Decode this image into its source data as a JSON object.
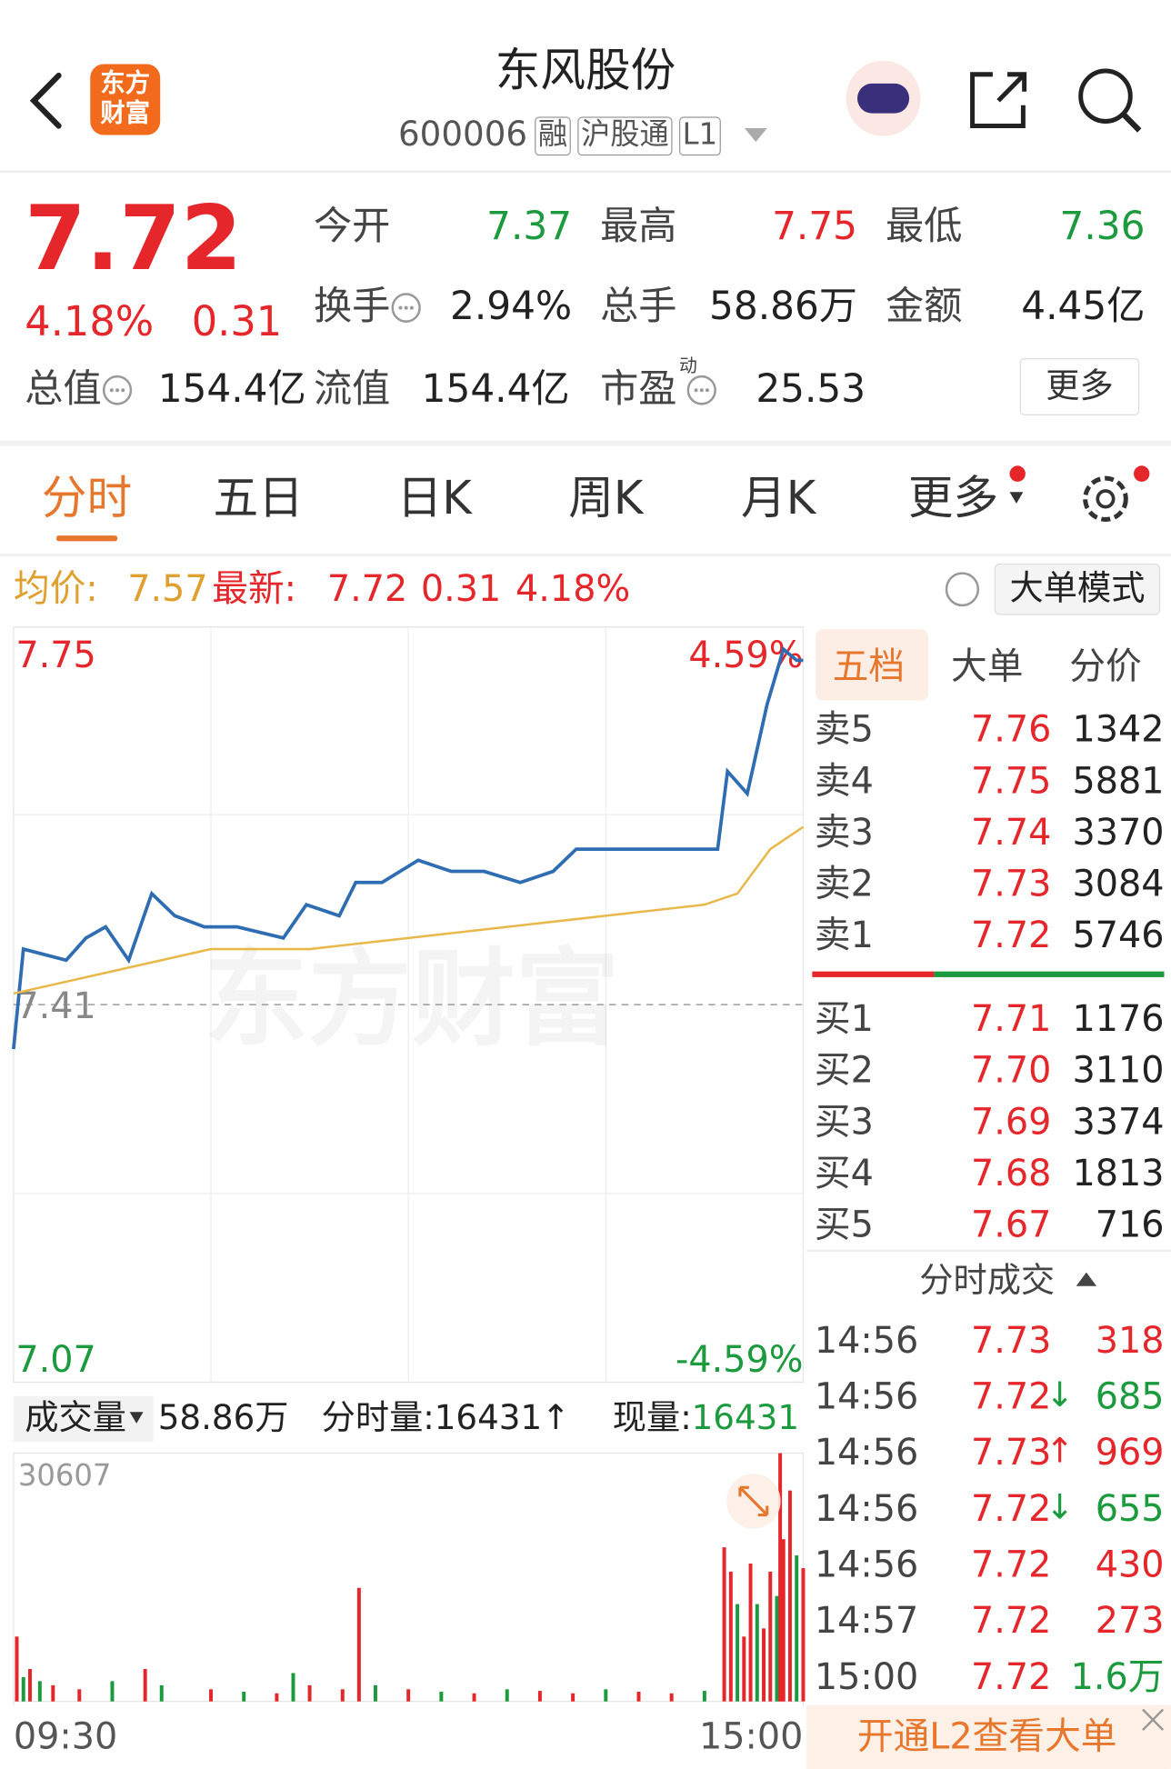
{
  "header": {
    "logo": "东方财富",
    "title": "东风股份",
    "code": "600006",
    "tags": [
      "融",
      "沪股通",
      "L1"
    ]
  },
  "quote": {
    "price": "7.72",
    "change_pct": "4.18%",
    "change": "0.31",
    "stats": [
      {
        "label": "今开",
        "value": "7.37",
        "color": "#1c9a3e"
      },
      {
        "label": "最高",
        "value": "7.75",
        "color": "#e5262b"
      },
      {
        "label": "最低",
        "value": "7.36",
        "color": "#1c9a3e"
      },
      {
        "label": "换手",
        "value": "2.94%",
        "color": "#222222"
      },
      {
        "label": "总手",
        "value": "58.86万",
        "color": "#222222"
      },
      {
        "label": "金额",
        "value": "4.45亿",
        "color": "#222222"
      },
      {
        "label": "总值",
        "value": "154.4亿",
        "color": "#222222"
      },
      {
        "label": "流值",
        "value": "154.4亿",
        "color": "#222222"
      },
      {
        "label": "市盈",
        "label_sup": "动",
        "value": "25.53",
        "color": "#222222"
      }
    ],
    "more": "更多"
  },
  "tabs": [
    "分时",
    "五日",
    "日K",
    "周K",
    "月K",
    "更多"
  ],
  "info_bar": {
    "avg_label": "均价:",
    "avg": "7.57",
    "latest_label": "最新:",
    "latest": "7.72",
    "change": "0.31",
    "change_pct": "4.18%",
    "mode_button": "大单模式"
  },
  "chart_data": [
    {
      "type": "line",
      "watermark": "东方财富",
      "xlim": [
        0,
        240
      ],
      "xticks": [
        {
          "value": 0,
          "label": "09:30"
        },
        {
          "value": 240,
          "label": "15:00"
        }
      ],
      "ylim": [
        7.07,
        7.75
      ],
      "yticks": [
        7.07,
        7.41,
        7.75
      ],
      "y2lim": [
        -4.59,
        4.59
      ],
      "y2ticks": [
        {
          "value": -4.59,
          "label": "-4.59%"
        },
        {
          "value": 4.59,
          "label": "4.59%"
        }
      ],
      "series": [
        {
          "name": "最新",
          "color": "#2f6db3",
          "x": [
            0,
            3,
            16,
            22,
            28,
            35,
            42,
            49,
            58,
            68,
            82,
            89,
            99,
            104,
            112,
            123,
            133,
            143,
            154,
            164,
            171,
            185,
            202,
            214,
            217,
            223,
            229,
            234,
            238,
            240
          ],
          "values": [
            7.37,
            7.46,
            7.45,
            7.47,
            7.48,
            7.45,
            7.51,
            7.49,
            7.48,
            7.48,
            7.47,
            7.5,
            7.49,
            7.52,
            7.52,
            7.54,
            7.53,
            7.53,
            7.52,
            7.53,
            7.55,
            7.55,
            7.55,
            7.55,
            7.62,
            7.6,
            7.68,
            7.73,
            7.72,
            7.72
          ]
        },
        {
          "name": "均价",
          "color": "#e8b84a",
          "x": [
            0,
            30,
            60,
            90,
            120,
            150,
            180,
            210,
            220,
            230,
            240
          ],
          "values": [
            7.42,
            7.44,
            7.46,
            7.46,
            7.47,
            7.48,
            7.49,
            7.5,
            7.51,
            7.55,
            7.57
          ]
        }
      ]
    },
    {
      "type": "bar",
      "title": "成交量",
      "total": "58.86万",
      "period_label": "分时量:",
      "period_value": "16431",
      "period_arrow": "↑",
      "now_label": "现量:",
      "now_value": "16431",
      "xlim": [
        0,
        240
      ],
      "ylim": [
        0,
        30607
      ],
      "yticks": [
        30607
      ],
      "x": [
        1,
        3,
        5,
        8,
        12,
        20,
        30,
        40,
        45,
        60,
        70,
        80,
        85,
        90,
        100,
        105,
        110,
        120,
        130,
        140,
        150,
        160,
        170,
        180,
        190,
        200,
        210,
        216,
        218,
        220,
        222,
        224,
        226,
        228,
        230,
        232,
        233,
        234,
        236,
        238,
        240
      ],
      "values": [
        8000,
        3000,
        4000,
        2500,
        2000,
        1500,
        2500,
        4000,
        2000,
        1500,
        1200,
        1000,
        3500,
        2000,
        1500,
        14000,
        2000,
        1500,
        1200,
        1000,
        1500,
        1300,
        1000,
        1500,
        1200,
        1000,
        1300,
        19000,
        16000,
        12000,
        8000,
        17000,
        12000,
        9000,
        16000,
        13000,
        30607,
        20000,
        26000,
        18000,
        16431
      ],
      "colors": [
        "#e5262b",
        "#1c9a3e",
        "#e5262b",
        "#1c9a3e",
        "#e5262b",
        "#e5262b",
        "#1c9a3e",
        "#e5262b",
        "#1c9a3e",
        "#e5262b",
        "#1c9a3e",
        "#e5262b",
        "#1c9a3e",
        "#e5262b",
        "#e5262b",
        "#e5262b",
        "#1c9a3e",
        "#e5262b",
        "#1c9a3e",
        "#e5262b",
        "#1c9a3e",
        "#e5262b",
        "#e5262b",
        "#1c9a3e",
        "#e5262b",
        "#e5262b",
        "#1c9a3e",
        "#e5262b",
        "#e5262b",
        "#1c9a3e",
        "#e5262b",
        "#e5262b",
        "#1c9a3e",
        "#e5262b",
        "#e5262b",
        "#1c9a3e",
        "#e5262b",
        "#e5262b",
        "#e5262b",
        "#1c9a3e",
        "#e5262b"
      ]
    }
  ],
  "order_book": {
    "tabs": [
      "五档",
      "大单",
      "分价"
    ],
    "asks": [
      {
        "label": "卖5",
        "price": "7.76",
        "volume": "1342"
      },
      {
        "label": "卖4",
        "price": "7.75",
        "volume": "5881"
      },
      {
        "label": "卖3",
        "price": "7.74",
        "volume": "3370"
      },
      {
        "label": "卖2",
        "price": "7.73",
        "volume": "3084"
      },
      {
        "label": "卖1",
        "price": "7.72",
        "volume": "5746"
      }
    ],
    "bids": [
      {
        "label": "买1",
        "price": "7.71",
        "volume": "1176"
      },
      {
        "label": "买2",
        "price": "7.70",
        "volume": "3110"
      },
      {
        "label": "买3",
        "price": "7.69",
        "volume": "3374"
      },
      {
        "label": "买4",
        "price": "7.68",
        "volume": "1813"
      },
      {
        "label": "买5",
        "price": "7.67",
        "volume": "716"
      }
    ]
  },
  "trades": {
    "title": "分时成交",
    "rows": [
      {
        "time": "14:56",
        "price": "7.73",
        "volume": "318",
        "volume_color": "#e5262b"
      },
      {
        "time": "14:56",
        "price": "7.72",
        "arrow": "↓",
        "volume": "685",
        "volume_color": "#1c9a3e"
      },
      {
        "time": "14:56",
        "price": "7.73",
        "arrow": "↑",
        "volume": "969",
        "volume_color": "#e5262b"
      },
      {
        "time": "14:56",
        "price": "7.72",
        "arrow": "↓",
        "volume": "655",
        "volume_color": "#1c9a3e"
      },
      {
        "time": "14:56",
        "price": "7.72",
        "volume": "430",
        "volume_color": "#e5262b"
      },
      {
        "time": "14:57",
        "price": "7.72",
        "volume": "273",
        "volume_color": "#e5262b"
      },
      {
        "time": "15:00",
        "price": "7.72",
        "volume": "1.6万",
        "volume_color": "#1c9a3e"
      }
    ]
  },
  "banner": "开通L2查看大单"
}
